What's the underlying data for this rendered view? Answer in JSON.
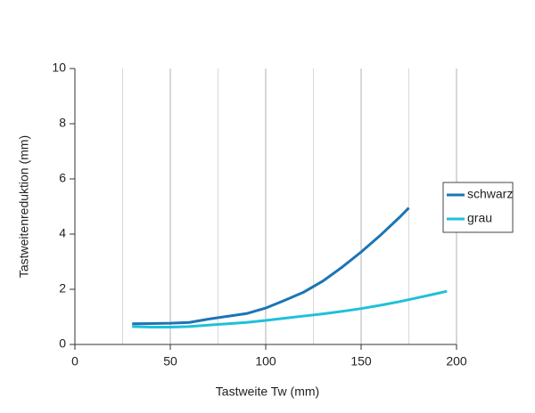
{
  "chart_data": {
    "type": "line",
    "x_label": "Tastweite Tw (mm)",
    "y_label": "Tastweitenreduktion (mm)",
    "xlim": [
      0,
      200
    ],
    "xticks": [
      0,
      50,
      100,
      150,
      200
    ],
    "x_minor_grid": [
      25,
      75,
      125,
      175
    ],
    "ylim": [
      0,
      10
    ],
    "yticks": [
      0,
      2,
      4,
      6,
      8,
      10
    ],
    "grid": "x",
    "legend": "right",
    "series": [
      {
        "name": "schwarz",
        "color": "#1b75b5",
        "x": [
          30,
          40,
          50,
          60,
          70,
          80,
          90,
          100,
          110,
          120,
          130,
          140,
          150,
          160,
          170,
          175
        ],
        "values": [
          0.75,
          0.76,
          0.77,
          0.8,
          0.92,
          1.02,
          1.12,
          1.32,
          1.6,
          1.9,
          2.3,
          2.8,
          3.35,
          3.95,
          4.6,
          4.95
        ]
      },
      {
        "name": "grau",
        "color": "#20c0d8",
        "x": [
          30,
          40,
          50,
          60,
          70,
          80,
          90,
          100,
          110,
          120,
          130,
          140,
          150,
          160,
          170,
          180,
          190,
          195
        ],
        "values": [
          0.65,
          0.63,
          0.63,
          0.65,
          0.7,
          0.75,
          0.8,
          0.87,
          0.95,
          1.03,
          1.11,
          1.2,
          1.3,
          1.42,
          1.55,
          1.7,
          1.85,
          1.93
        ]
      }
    ]
  }
}
